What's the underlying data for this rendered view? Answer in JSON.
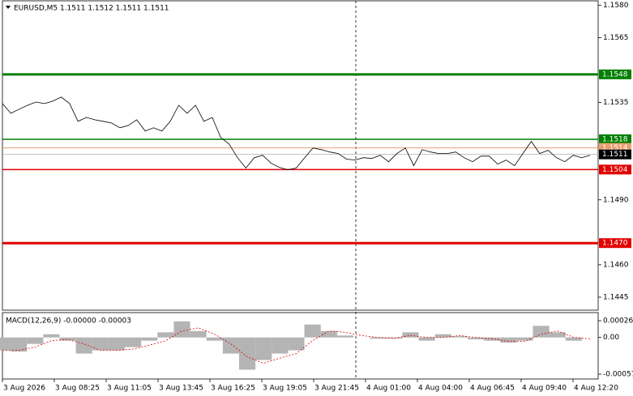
{
  "chart_data": [
    {
      "type": "line",
      "title": "EURUSD,M5  1.1511 1.1512 1.1511 1.1511",
      "color": "#000000",
      "ylim": [
        1.1439,
        1.1582
      ],
      "yticks": [
        {
          "value": 1.158,
          "label": "1.1580"
        },
        1.1565,
        1.1535,
        {
          "value": 1.149,
          "label": "1.1490"
        },
        {
          "value": 1.146,
          "label": "1.1460"
        },
        1.1445
      ],
      "values": [
        1.15345,
        1.153,
        1.15319,
        1.15337,
        1.15352,
        1.15345,
        1.15356,
        1.15375,
        1.15345,
        1.15263,
        1.15281,
        1.1527,
        1.15263,
        1.15255,
        1.15233,
        1.15244,
        1.1527,
        1.15218,
        1.15233,
        1.15218,
        1.15263,
        1.15337,
        1.153,
        1.15337,
        1.15263,
        1.15281,
        1.15188,
        1.15158,
        1.15095,
        1.15047,
        1.15095,
        1.15106,
        1.15069,
        1.1505,
        1.15039,
        1.15047,
        1.15095,
        1.1514,
        1.15132,
        1.15121,
        1.15114,
        1.15088,
        1.15084,
        1.15095,
        1.15091,
        1.15106,
        1.15076,
        1.15114,
        1.1514,
        1.15058,
        1.15132,
        1.15121,
        1.15114,
        1.15114,
        1.15121,
        1.15095,
        1.15076,
        1.15102,
        1.15102,
        1.15065,
        1.15084,
        1.15058,
        1.15114,
        1.1517,
        1.15114,
        1.15129,
        1.15095,
        1.15076,
        1.15106,
        1.15095,
        1.15106
      ],
      "levels": [
        {
          "value": 1.1548,
          "color": "#007f00",
          "width": 3
        },
        {
          "value": 1.1518,
          "color": "#007f00",
          "width": 1.5
        },
        {
          "value": 1.1514,
          "color": "#e8a070",
          "width": 1
        },
        {
          "value": 1.1511,
          "color": "#000000",
          "width": 0.6
        },
        {
          "value": 1.1504,
          "color": "#e00000",
          "width": 1.5
        },
        {
          "value": 1.147,
          "label": "1.1470",
          "color": "#e00000",
          "width": 3
        }
      ],
      "x_labels": [
        "3 Aug 2026",
        "3 Aug 08:25",
        "3 Aug 11:05",
        "3 Aug 13:45",
        "3 Aug 16:25",
        "3 Aug 19:05",
        "3 Aug 21:45",
        "4 Aug 01:00",
        "4 Aug 04:00",
        "4 Aug 06:45",
        "4 Aug 09:40",
        "4 Aug 12:20"
      ]
    },
    {
      "type": "macd",
      "title": "MACD(12,26,9) -0.00000 -0.00003",
      "ylim": [
        -0.000645,
        0.000386
      ],
      "yticks": [
        0.00026,
        {
          "value": 0,
          "label": "0.00"
        },
        -0.00057
      ],
      "series": [
        {
          "name": "MACD",
          "color": "#b4b4b4",
          "values": [
            -0.0002,
            -0.00022,
            -0.0001,
            5e-05,
            -5e-05,
            -0.00025,
            -0.0002,
            -0.0002,
            -0.00015,
            -5e-05,
            8e-05,
            0.00025,
            0.0001,
            -5e-05,
            -0.00025,
            -0.0005,
            -0.00035,
            -0.00025,
            -0.0002,
            0.0002,
            0.0001,
            3e-05,
            0,
            -2e-05,
            -2e-05,
            8e-05,
            -5e-05,
            5e-05,
            2e-05,
            -3e-05,
            -5e-05,
            -8e-05,
            -5e-05,
            0.00018,
            8e-05,
            -5e-05,
            0
          ]
        },
        {
          "name": "Signal",
          "color": "#e00000",
          "values": [
            -0.0002,
            -0.0002,
            -0.00015,
            -5e-05,
            -3e-05,
            -0.0001,
            -0.0002,
            -0.0002,
            -0.00018,
            -0.00012,
            -5e-05,
            0.0001,
            0.00015,
            5e-05,
            -0.0001,
            -0.0003,
            -0.0004,
            -0.00032,
            -0.00025,
            -5e-05,
            0.0001,
            8e-05,
            3e-05,
            0,
            -1e-05,
            3e-05,
            0,
            0,
            3e-05,
            0,
            -2e-05,
            -6e-05,
            -6e-05,
            5e-05,
            0.0001,
            0,
            -2e-05
          ]
        }
      ]
    }
  ]
}
